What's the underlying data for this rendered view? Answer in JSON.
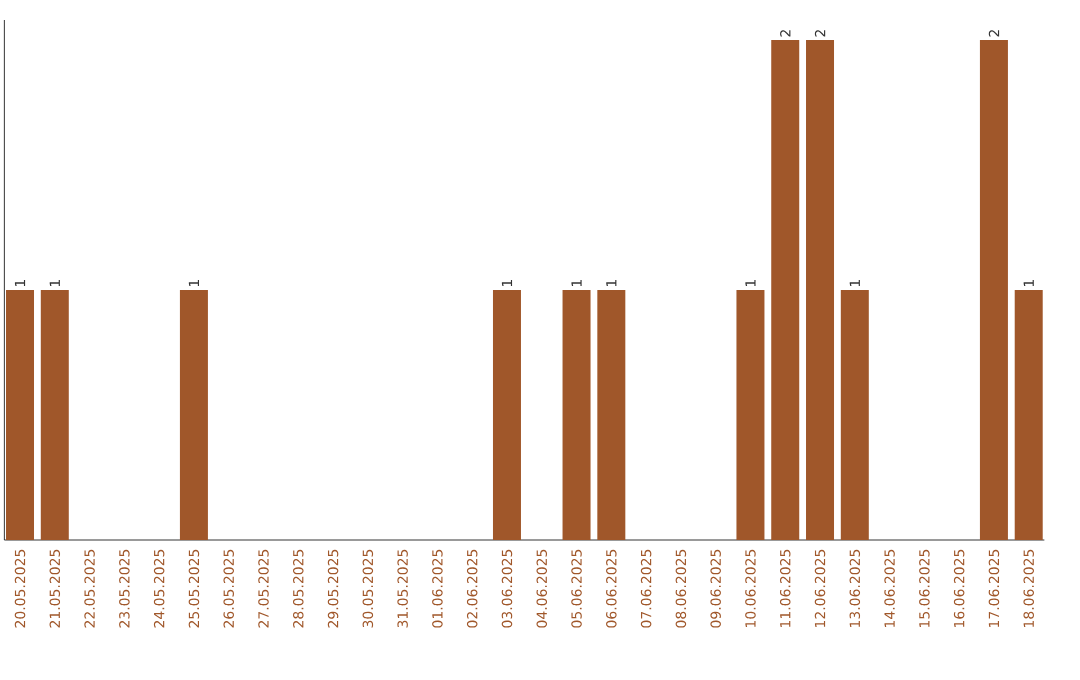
{
  "chart_data": {
    "type": "bar",
    "categories": [
      "20.05.2025",
      "21.05.2025",
      "22.05.2025",
      "23.05.2025",
      "24.05.2025",
      "25.05.2025",
      "26.05.2025",
      "27.05.2025",
      "28.05.2025",
      "29.05.2025",
      "30.05.2025",
      "31.05.2025",
      "01.06.2025",
      "02.06.2025",
      "03.06.2025",
      "04.06.2025",
      "05.06.2025",
      "06.06.2025",
      "07.06.2025",
      "08.06.2025",
      "09.06.2025",
      "10.06.2025",
      "11.06.2025",
      "12.06.2025",
      "13.06.2025",
      "14.06.2025",
      "15.06.2025",
      "16.06.2025",
      "17.06.2025",
      "18.06.2025"
    ],
    "values": [
      1,
      1,
      0,
      0,
      0,
      1,
      0,
      0,
      0,
      0,
      0,
      0,
      0,
      0,
      1,
      0,
      1,
      1,
      0,
      0,
      0,
      1,
      2,
      2,
      1,
      0,
      0,
      0,
      2,
      1
    ],
    "value_labels": [
      "1",
      "1",
      null,
      null,
      null,
      "1",
      null,
      null,
      null,
      null,
      null,
      null,
      null,
      null,
      "1",
      null,
      "1",
      "1",
      null,
      null,
      null,
      "1",
      "2",
      "2",
      "1",
      null,
      null,
      null,
      "2",
      "1"
    ],
    "color": "#a0572a",
    "grid": false
  }
}
